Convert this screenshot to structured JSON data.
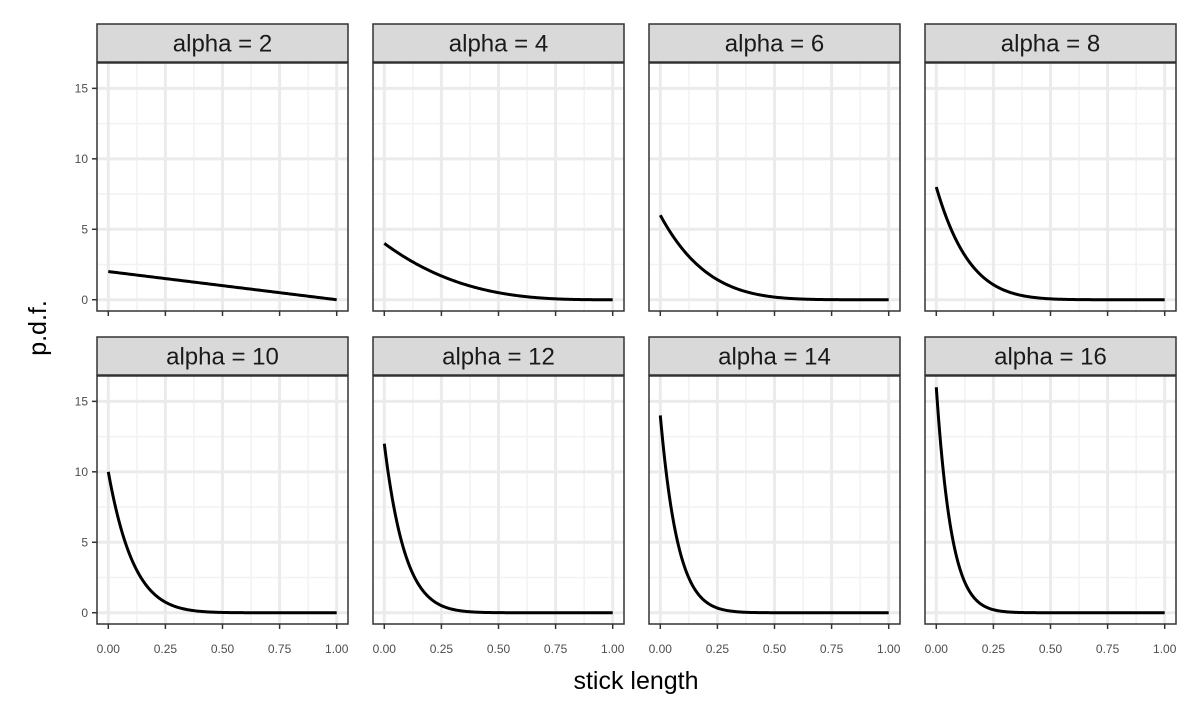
{
  "chart_data": {
    "type": "line",
    "facet_wrap": {
      "nrow": 2,
      "ncol": 4
    },
    "xlabel": "stick length",
    "ylabel": "p.d.f.",
    "xlim": [
      0,
      1
    ],
    "ylim": [
      0,
      16
    ],
    "x_ticks": [
      "0.00",
      "0.25",
      "0.50",
      "0.75",
      "1.00"
    ],
    "x_tick_values": [
      0,
      0.25,
      0.5,
      0.75,
      1
    ],
    "y_ticks": [
      "0",
      "5",
      "10",
      "15"
    ],
    "y_tick_values": [
      0,
      5,
      10,
      15
    ],
    "grid": true,
    "function": "alpha * (1 - x)^(alpha - 1)",
    "panels": [
      {
        "label": "alpha = 2",
        "alpha": 2
      },
      {
        "label": "alpha = 4",
        "alpha": 4
      },
      {
        "label": "alpha = 6",
        "alpha": 6
      },
      {
        "label": "alpha = 8",
        "alpha": 8
      },
      {
        "label": "alpha = 10",
        "alpha": 10
      },
      {
        "label": "alpha = 12",
        "alpha": 12
      },
      {
        "label": "alpha = 14",
        "alpha": 14
      },
      {
        "label": "alpha = 16",
        "alpha": 16
      }
    ],
    "colors": {
      "line": "#000000",
      "strip_fill": "#d9d9d9",
      "strip_border": "#333333",
      "panel_border": "#333333",
      "grid_major": "#ebebeb",
      "grid_minor": "#f2f2f2",
      "tick_text": "#4d4d4d"
    }
  }
}
